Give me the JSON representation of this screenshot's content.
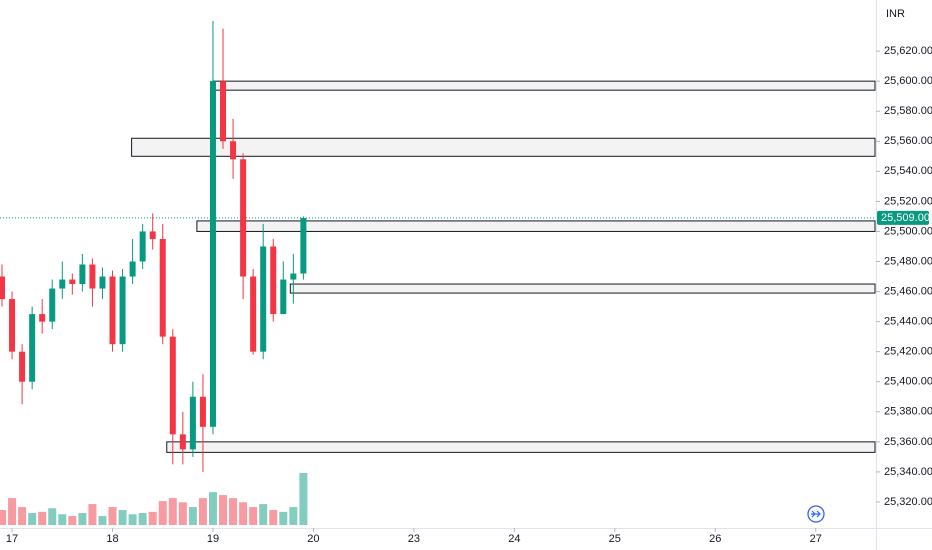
{
  "chart_data": {
    "type": "candlestick",
    "currency": "INR",
    "up_color": "#089981",
    "down_color": "#f23645",
    "x": [
      16.9,
      17.0,
      17.1,
      17.2,
      17.3,
      17.4,
      17.5,
      17.6,
      17.7,
      17.8,
      17.9,
      18.0,
      18.1,
      18.2,
      18.3,
      18.4,
      18.5,
      18.6,
      18.7,
      18.8,
      18.9,
      19.0,
      19.1,
      19.2,
      19.3,
      19.4,
      19.5,
      19.6,
      19.7,
      19.8,
      19.9
    ],
    "open": [
      25470,
      25455,
      25420,
      25400,
      25445,
      25440,
      25462,
      25468,
      25465,
      25478,
      25462,
      25470,
      25425,
      25470,
      25480,
      25500,
      25495,
      25430,
      25365,
      25355,
      25390,
      25370,
      25600,
      25560,
      25548,
      25470,
      25420,
      25490,
      25445,
      25468,
      25472
    ],
    "high": [
      25478,
      25460,
      25425,
      25450,
      25455,
      25468,
      25480,
      25472,
      25485,
      25482,
      25476,
      25474,
      25475,
      25495,
      25505,
      25512,
      25505,
      25435,
      25380,
      25400,
      25405,
      25640,
      25635,
      25575,
      25552,
      25475,
      25505,
      25495,
      25480,
      25485,
      25510
    ],
    "low": [
      25450,
      25415,
      25385,
      25395,
      25432,
      25435,
      25455,
      25458,
      25460,
      25450,
      25455,
      25420,
      25420,
      25465,
      25475,
      25488,
      25425,
      25345,
      25345,
      25350,
      25340,
      25365,
      25555,
      25535,
      25455,
      25418,
      25415,
      25440,
      25445,
      25452,
      25468
    ],
    "close": [
      25455,
      25420,
      25400,
      25445,
      25440,
      25462,
      25468,
      25465,
      25478,
      25462,
      25470,
      25425,
      25470,
      25480,
      25500,
      25495,
      25430,
      25365,
      25355,
      25390,
      25370,
      25600,
      25560,
      25548,
      25470,
      25420,
      25490,
      25445,
      25468,
      25472,
      25509
    ],
    "volume": [
      25,
      45,
      30,
      20,
      22,
      28,
      18,
      15,
      20,
      35,
      15,
      30,
      25,
      18,
      20,
      22,
      40,
      45,
      38,
      30,
      45,
      55,
      50,
      45,
      38,
      30,
      35,
      25,
      22,
      30,
      87
    ],
    "zones": [
      {
        "x": 19.0,
        "top": 25600,
        "bottom": 25594
      },
      {
        "x": 18.19,
        "top": 25562,
        "bottom": 25550
      },
      {
        "x": 18.84,
        "top": 25507,
        "bottom": 25500
      },
      {
        "x": 19.77,
        "top": 25465,
        "bottom": 25459
      },
      {
        "x": 18.54,
        "top": 25360,
        "bottom": 25353
      }
    ],
    "last_price": 25509,
    "last_price_label": "25,509.00",
    "xlim": [
      16.88,
      25.6
    ],
    "xticks": [
      17,
      18,
      19,
      20,
      {
        "value": 21,
        "label": "23"
      },
      {
        "value": 22,
        "label": "24"
      },
      {
        "value": 23,
        "label": "25"
      },
      {
        "value": 24,
        "label": "26"
      },
      {
        "value": 25,
        "label": "27"
      }
    ],
    "ylim": [
      25308,
      25654
    ],
    "yticks": [
      {
        "value": 25320,
        "label": "25,320.00"
      },
      {
        "value": 25340,
        "label": "25,340.00"
      },
      {
        "value": 25360,
        "label": "25,360.00"
      },
      {
        "value": 25380,
        "label": "25,380.00"
      },
      {
        "value": 25400,
        "label": "25,400.00"
      },
      {
        "value": 25420,
        "label": "25,420.00"
      },
      {
        "value": 25440,
        "label": "25,440.00"
      },
      {
        "value": 25460,
        "label": "25,460.00"
      },
      {
        "value": 25480,
        "label": "25,480.00"
      },
      {
        "value": 25500,
        "label": "25,500.00"
      },
      {
        "value": 25520,
        "label": "25,520.00"
      },
      {
        "value": 25540,
        "label": "25,540.00"
      },
      {
        "value": 25560,
        "label": "25,560.00"
      },
      {
        "value": 25580,
        "label": "25,580.00"
      },
      {
        "value": 25600,
        "label": "25,600.00"
      },
      {
        "value": 25620,
        "label": "25,620.00"
      }
    ]
  }
}
